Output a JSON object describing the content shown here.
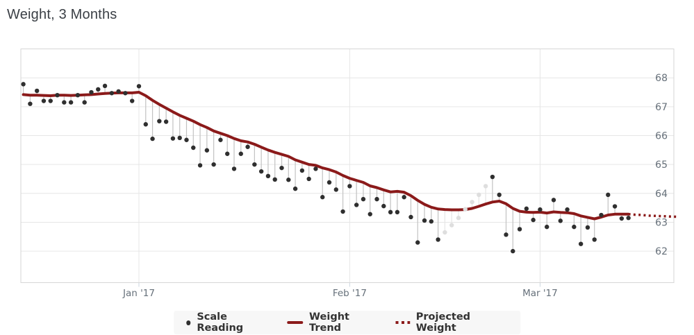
{
  "page": {
    "title": "Weight, 3 Months"
  },
  "legend": {
    "items": [
      {
        "label": "Scale Reading",
        "marker": "dot"
      },
      {
        "label": "Weight Trend",
        "marker": "line"
      },
      {
        "label": "Projected Weight",
        "marker": "dotted-line"
      }
    ]
  },
  "chart_data": {
    "type": "line",
    "title": "Weight, 3 Months",
    "grid": true,
    "legend_position": "bottom",
    "y_axis": {
      "position": "right",
      "tick_labels": [
        68,
        67,
        66,
        65,
        64,
        63,
        62
      ],
      "ylim": [
        61,
        69
      ]
    },
    "x_axis": {
      "unit": "day",
      "span_days": 97,
      "ticks": [
        {
          "label": "Jan '17",
          "day_index": 17
        },
        {
          "label": "Feb '17",
          "day_index": 48
        },
        {
          "label": "Mar '17",
          "day_index": 76
        }
      ]
    },
    "colors": {
      "reading_dot": "#2f2f2f",
      "interpolated_dot": "#dedede",
      "variance_line": "#c2c2c2",
      "interpolated_variance_line": "#e6e6e6",
      "trend": "#8b1a1a",
      "gridline": "#e6e6e6",
      "plot_border": "#d6d6d6",
      "axis_tick": "#ccd6e0",
      "axis_label": "#66707a",
      "legend_bg": "#f7f7f7",
      "legend_text": "#333333"
    },
    "series": [
      {
        "name": "Scale Reading",
        "type": "scatter",
        "start_index": 0,
        "interpolated_indices": [
          62,
          63,
          64,
          65,
          66,
          67,
          68
        ],
        "values": [
          67.78,
          67.1,
          67.55,
          67.2,
          67.2,
          67.4,
          67.15,
          67.15,
          67.4,
          67.15,
          67.5,
          67.6,
          67.72,
          67.47,
          67.53,
          67.47,
          67.2,
          67.71,
          66.39,
          65.89,
          66.5,
          66.48,
          65.9,
          65.92,
          65.85,
          65.58,
          64.97,
          65.49,
          65.0,
          65.85,
          65.37,
          64.85,
          65.37,
          65.61,
          65.0,
          64.76,
          64.6,
          64.48,
          64.88,
          64.47,
          64.16,
          64.79,
          64.5,
          64.85,
          63.87,
          64.38,
          64.13,
          63.37,
          64.25,
          63.6,
          63.8,
          63.28,
          63.8,
          63.56,
          63.35,
          63.35,
          63.87,
          63.18,
          62.3,
          63.06,
          63.03,
          62.4,
          62.65,
          62.9,
          63.15,
          63.45,
          63.7,
          63.95,
          64.25,
          64.57,
          63.95,
          62.57,
          62.0,
          62.76,
          63.47,
          63.08,
          63.44,
          62.84,
          63.77,
          63.05,
          63.44,
          62.84,
          62.25,
          62.82,
          62.4,
          63.25,
          63.95,
          63.55,
          63.13,
          63.15
        ]
      },
      {
        "name": "Weight Trend",
        "type": "line",
        "start_index": 0,
        "values": [
          67.42,
          67.4,
          67.4,
          67.39,
          67.38,
          67.4,
          67.4,
          67.39,
          67.4,
          67.41,
          67.42,
          67.44,
          67.46,
          67.47,
          67.48,
          67.48,
          67.48,
          67.5,
          67.38,
          67.22,
          67.08,
          66.95,
          66.82,
          66.7,
          66.6,
          66.5,
          66.38,
          66.28,
          66.16,
          66.08,
          66.0,
          65.9,
          65.82,
          65.78,
          65.7,
          65.6,
          65.5,
          65.42,
          65.35,
          65.28,
          65.16,
          65.08,
          65.0,
          64.97,
          64.88,
          64.82,
          64.74,
          64.62,
          64.52,
          64.45,
          64.38,
          64.26,
          64.2,
          64.12,
          64.05,
          64.07,
          64.04,
          63.92,
          63.76,
          63.62,
          63.52,
          63.46,
          63.44,
          63.43,
          63.43,
          63.44,
          63.48,
          63.55,
          63.63,
          63.7,
          63.73,
          63.64,
          63.48,
          63.38,
          63.35,
          63.34,
          63.35,
          63.32,
          63.36,
          63.34,
          63.33,
          63.3,
          63.22,
          63.17,
          63.12,
          63.18,
          63.25,
          63.28,
          63.28,
          63.28
        ]
      },
      {
        "name": "Projected Weight",
        "type": "dotted-line",
        "start_index": 89,
        "values": [
          63.28,
          63.26,
          63.25,
          63.23,
          63.22,
          63.21,
          63.2,
          63.19
        ]
      }
    ]
  }
}
